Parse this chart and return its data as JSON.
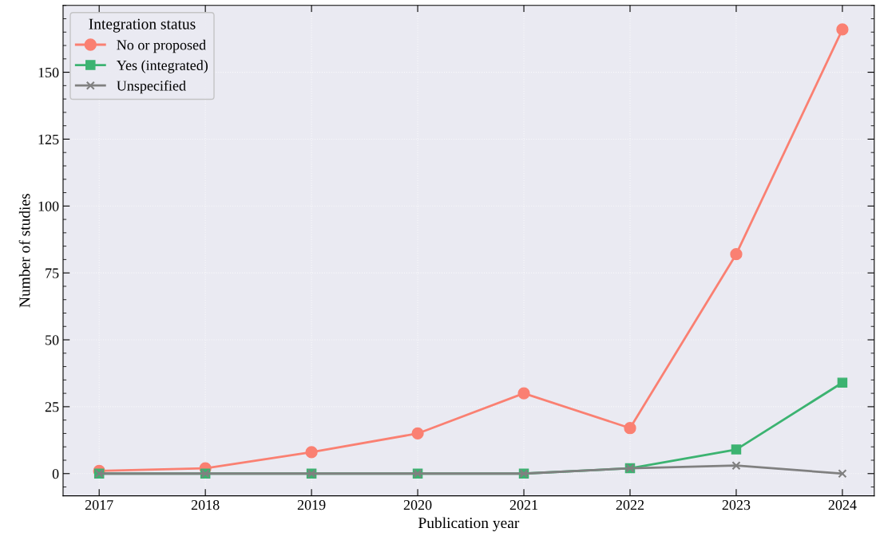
{
  "chart_data": {
    "type": "line",
    "xlabel": "Publication year",
    "ylabel": "Number of studies",
    "legend_title": "Integration status",
    "legend": "top left",
    "grid": true,
    "x": [
      2017,
      2018,
      2019,
      2020,
      2021,
      2022,
      2023,
      2024
    ],
    "xlim": [
      2016.66,
      2024.3
    ],
    "xticks": [
      2017,
      2018,
      2019,
      2020,
      2021,
      2022,
      2023,
      2024
    ],
    "ylim": [
      -8.3,
      175
    ],
    "yticks": [
      0,
      25,
      50,
      75,
      100,
      125,
      150
    ],
    "series": [
      {
        "name": "No or proposed",
        "color": "#fa8072",
        "marker": "circle",
        "values": [
          1,
          2,
          8,
          15,
          30,
          17,
          82,
          166
        ]
      },
      {
        "name": "Yes (integrated)",
        "color": "#3cb371",
        "marker": "square",
        "values": [
          0,
          0,
          0,
          0,
          0,
          2,
          9,
          34
        ]
      },
      {
        "name": "Unspecified",
        "color": "#808080",
        "marker": "cross",
        "values": [
          0,
          0,
          0,
          0,
          0,
          2,
          3,
          0
        ]
      }
    ]
  }
}
